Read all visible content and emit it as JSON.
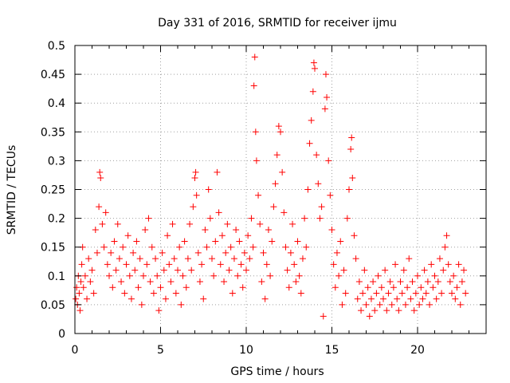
{
  "chart_data": {
    "type": "scatter",
    "title": "Day 331 of 2016, SRMTID for receiver ijmu",
    "xlabel": "GPS time / hours",
    "ylabel": "SRMTID / TECUs",
    "xlim": [
      0,
      24
    ],
    "ylim": [
      0,
      0.5
    ],
    "xticks": [
      0,
      5,
      10,
      15,
      20
    ],
    "xtick_labels": [
      "0",
      "5",
      "10",
      "15",
      "20"
    ],
    "yticks": [
      0,
      0.05,
      0.1,
      0.15,
      0.2,
      0.25,
      0.3,
      0.35,
      0.4,
      0.45,
      0.5
    ],
    "ytick_labels": [
      "0",
      "0.05",
      "0.1",
      "0.15",
      "0.2",
      "0.25",
      "0.3",
      "0.35",
      "0.4",
      "0.45",
      "0.5"
    ],
    "grid": true,
    "marker": "+",
    "color": "#ff0000",
    "series": [
      {
        "points": [
          [
            0.05,
            0.06
          ],
          [
            0.1,
            0.08
          ],
          [
            0.15,
            0.05
          ],
          [
            0.2,
            0.1
          ],
          [
            0.25,
            0.07
          ],
          [
            0.3,
            0.04
          ],
          [
            0.35,
            0.09
          ],
          [
            0.4,
            0.12
          ],
          [
            0.45,
            0.15
          ],
          [
            0.5,
            0.08
          ],
          [
            0.6,
            0.1
          ],
          [
            0.7,
            0.06
          ],
          [
            0.8,
            0.13
          ],
          [
            0.9,
            0.09
          ],
          [
            1.0,
            0.11
          ],
          [
            1.1,
            0.07
          ],
          [
            1.2,
            0.18
          ],
          [
            1.3,
            0.14
          ],
          [
            1.4,
            0.22
          ],
          [
            1.45,
            0.28
          ],
          [
            1.5,
            0.27
          ],
          [
            1.6,
            0.19
          ],
          [
            1.7,
            0.15
          ],
          [
            1.8,
            0.21
          ],
          [
            1.9,
            0.12
          ],
          [
            2.0,
            0.1
          ],
          [
            2.1,
            0.14
          ],
          [
            2.2,
            0.08
          ],
          [
            2.3,
            0.16
          ],
          [
            2.4,
            0.11
          ],
          [
            2.5,
            0.19
          ],
          [
            2.6,
            0.13
          ],
          [
            2.7,
            0.09
          ],
          [
            2.8,
            0.15
          ],
          [
            2.9,
            0.07
          ],
          [
            3.0,
            0.12
          ],
          [
            3.1,
            0.17
          ],
          [
            3.2,
            0.1
          ],
          [
            3.3,
            0.06
          ],
          [
            3.4,
            0.14
          ],
          [
            3.5,
            0.11
          ],
          [
            3.6,
            0.16
          ],
          [
            3.7,
            0.08
          ],
          [
            3.8,
            0.13
          ],
          [
            3.9,
            0.05
          ],
          [
            4.0,
            0.1
          ],
          [
            4.1,
            0.18
          ],
          [
            4.2,
            0.12
          ],
          [
            4.3,
            0.2
          ],
          [
            4.4,
            0.09
          ],
          [
            4.5,
            0.15
          ],
          [
            4.6,
            0.07
          ],
          [
            4.7,
            0.13
          ],
          [
            4.8,
            0.1
          ],
          [
            4.9,
            0.04
          ],
          [
            5.0,
            0.08
          ],
          [
            5.1,
            0.14
          ],
          [
            5.2,
            0.11
          ],
          [
            5.3,
            0.06
          ],
          [
            5.4,
            0.17
          ],
          [
            5.5,
            0.12
          ],
          [
            5.6,
            0.09
          ],
          [
            5.7,
            0.19
          ],
          [
            5.8,
            0.13
          ],
          [
            5.9,
            0.07
          ],
          [
            6.0,
            0.11
          ],
          [
            6.1,
            0.15
          ],
          [
            6.2,
            0.05
          ],
          [
            6.3,
            0.1
          ],
          [
            6.4,
            0.16
          ],
          [
            6.5,
            0.08
          ],
          [
            6.6,
            0.13
          ],
          [
            6.7,
            0.19
          ],
          [
            6.8,
            0.11
          ],
          [
            6.9,
            0.22
          ],
          [
            7.0,
            0.27
          ],
          [
            7.05,
            0.28
          ],
          [
            7.1,
            0.24
          ],
          [
            7.2,
            0.14
          ],
          [
            7.3,
            0.09
          ],
          [
            7.4,
            0.12
          ],
          [
            7.5,
            0.06
          ],
          [
            7.6,
            0.18
          ],
          [
            7.7,
            0.15
          ],
          [
            7.8,
            0.25
          ],
          [
            7.9,
            0.2
          ],
          [
            8.0,
            0.13
          ],
          [
            8.1,
            0.1
          ],
          [
            8.2,
            0.16
          ],
          [
            8.3,
            0.28
          ],
          [
            8.4,
            0.21
          ],
          [
            8.5,
            0.12
          ],
          [
            8.6,
            0.17
          ],
          [
            8.7,
            0.09
          ],
          [
            8.8,
            0.14
          ],
          [
            8.9,
            0.19
          ],
          [
            9.0,
            0.11
          ],
          [
            9.1,
            0.15
          ],
          [
            9.2,
            0.07
          ],
          [
            9.3,
            0.13
          ],
          [
            9.4,
            0.18
          ],
          [
            9.5,
            0.1
          ],
          [
            9.6,
            0.16
          ],
          [
            9.7,
            0.12
          ],
          [
            9.8,
            0.08
          ],
          [
            9.9,
            0.14
          ],
          [
            10.0,
            0.11
          ],
          [
            10.1,
            0.17
          ],
          [
            10.2,
            0.13
          ],
          [
            10.3,
            0.2
          ],
          [
            10.4,
            0.15
          ],
          [
            10.45,
            0.43
          ],
          [
            10.5,
            0.48
          ],
          [
            10.55,
            0.35
          ],
          [
            10.6,
            0.3
          ],
          [
            10.7,
            0.24
          ],
          [
            10.8,
            0.19
          ],
          [
            10.9,
            0.09
          ],
          [
            11.0,
            0.14
          ],
          [
            11.1,
            0.06
          ],
          [
            11.2,
            0.12
          ],
          [
            11.3,
            0.18
          ],
          [
            11.4,
            0.1
          ],
          [
            11.5,
            0.16
          ],
          [
            11.6,
            0.22
          ],
          [
            11.7,
            0.26
          ],
          [
            11.8,
            0.31
          ],
          [
            11.9,
            0.36
          ],
          [
            12.0,
            0.35
          ],
          [
            12.1,
            0.28
          ],
          [
            12.2,
            0.21
          ],
          [
            12.3,
            0.15
          ],
          [
            12.4,
            0.11
          ],
          [
            12.5,
            0.08
          ],
          [
            12.6,
            0.14
          ],
          [
            12.7,
            0.19
          ],
          [
            12.8,
            0.12
          ],
          [
            12.9,
            0.09
          ],
          [
            13.0,
            0.16
          ],
          [
            13.1,
            0.1
          ],
          [
            13.2,
            0.07
          ],
          [
            13.3,
            0.13
          ],
          [
            13.4,
            0.2
          ],
          [
            13.5,
            0.15
          ],
          [
            13.6,
            0.25
          ],
          [
            13.7,
            0.33
          ],
          [
            13.8,
            0.37
          ],
          [
            13.9,
            0.42
          ],
          [
            13.95,
            0.47
          ],
          [
            14.0,
            0.46
          ],
          [
            14.1,
            0.31
          ],
          [
            14.2,
            0.26
          ],
          [
            14.3,
            0.2
          ],
          [
            14.4,
            0.22
          ],
          [
            14.5,
            0.03
          ],
          [
            14.6,
            0.39
          ],
          [
            14.65,
            0.45
          ],
          [
            14.7,
            0.41
          ],
          [
            14.8,
            0.3
          ],
          [
            14.9,
            0.24
          ],
          [
            15.0,
            0.18
          ],
          [
            15.1,
            0.12
          ],
          [
            15.2,
            0.08
          ],
          [
            15.3,
            0.14
          ],
          [
            15.4,
            0.1
          ],
          [
            15.5,
            0.16
          ],
          [
            15.6,
            0.05
          ],
          [
            15.7,
            0.11
          ],
          [
            15.8,
            0.07
          ],
          [
            15.9,
            0.2
          ],
          [
            16.0,
            0.25
          ],
          [
            16.1,
            0.32
          ],
          [
            16.15,
            0.34
          ],
          [
            16.2,
            0.27
          ],
          [
            16.3,
            0.17
          ],
          [
            16.4,
            0.13
          ],
          [
            16.5,
            0.06
          ],
          [
            16.6,
            0.09
          ],
          [
            16.7,
            0.04
          ],
          [
            16.8,
            0.07
          ],
          [
            16.9,
            0.11
          ],
          [
            17.0,
            0.05
          ],
          [
            17.1,
            0.08
          ],
          [
            17.2,
            0.03
          ],
          [
            17.3,
            0.06
          ],
          [
            17.4,
            0.09
          ],
          [
            17.5,
            0.04
          ],
          [
            17.6,
            0.07
          ],
          [
            17.7,
            0.1
          ],
          [
            17.8,
            0.05
          ],
          [
            17.9,
            0.08
          ],
          [
            18.0,
            0.06
          ],
          [
            18.1,
            0.11
          ],
          [
            18.2,
            0.04
          ],
          [
            18.3,
            0.07
          ],
          [
            18.4,
            0.09
          ],
          [
            18.5,
            0.05
          ],
          [
            18.6,
            0.08
          ],
          [
            18.7,
            0.12
          ],
          [
            18.8,
            0.06
          ],
          [
            18.9,
            0.04
          ],
          [
            19.0,
            0.09
          ],
          [
            19.1,
            0.07
          ],
          [
            19.2,
            0.11
          ],
          [
            19.3,
            0.05
          ],
          [
            19.4,
            0.08
          ],
          [
            19.5,
            0.13
          ],
          [
            19.6,
            0.06
          ],
          [
            19.7,
            0.09
          ],
          [
            19.8,
            0.04
          ],
          [
            19.9,
            0.07
          ],
          [
            20.0,
            0.1
          ],
          [
            20.1,
            0.05
          ],
          [
            20.2,
            0.08
          ],
          [
            20.3,
            0.06
          ],
          [
            20.4,
            0.11
          ],
          [
            20.5,
            0.07
          ],
          [
            20.6,
            0.09
          ],
          [
            20.7,
            0.05
          ],
          [
            20.8,
            0.12
          ],
          [
            20.9,
            0.08
          ],
          [
            21.0,
            0.1
          ],
          [
            21.1,
            0.06
          ],
          [
            21.2,
            0.09
          ],
          [
            21.3,
            0.13
          ],
          [
            21.4,
            0.07
          ],
          [
            21.5,
            0.11
          ],
          [
            21.6,
            0.15
          ],
          [
            21.7,
            0.17
          ],
          [
            21.8,
            0.12
          ],
          [
            21.9,
            0.09
          ],
          [
            22.0,
            0.07
          ],
          [
            22.1,
            0.1
          ],
          [
            22.2,
            0.06
          ],
          [
            22.3,
            0.08
          ],
          [
            22.4,
            0.12
          ],
          [
            22.5,
            0.05
          ],
          [
            22.6,
            0.09
          ],
          [
            22.7,
            0.11
          ],
          [
            22.8,
            0.07
          ]
        ]
      }
    ]
  }
}
